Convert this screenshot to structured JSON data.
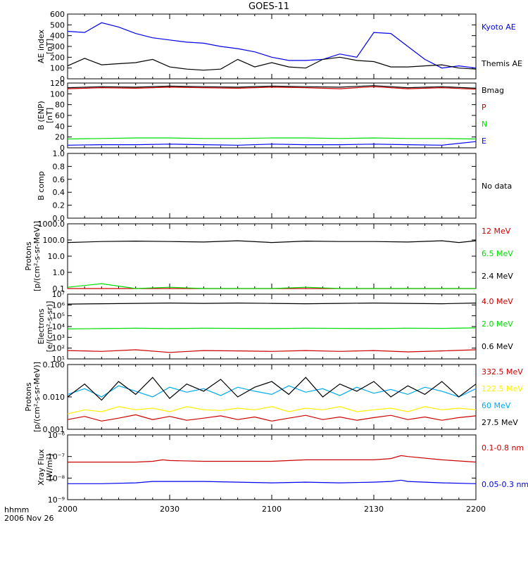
{
  "title": "GOES-11",
  "x_axis": {
    "labels": [
      "2000",
      "2030",
      "2100",
      "2130",
      "2200"
    ],
    "time_label": "hhmm",
    "date_label": "2006 Nov 26"
  },
  "colors": {
    "black": "#000000",
    "red": "#cc0000",
    "green": "#00dd00",
    "blue": "#0000ee",
    "cyan": "#00aaee",
    "yellow": "#ffee00"
  },
  "chart_data": [
    {
      "type": "line",
      "id": "ae",
      "ylabel": [
        "AE index",
        "[nT]"
      ],
      "ylim": [
        0,
        600
      ],
      "scale": "linear",
      "ytick_labels": [
        "0",
        "100",
        "200",
        "300",
        "400",
        "500",
        "600"
      ],
      "x_minutes": [
        0,
        5,
        10,
        15,
        20,
        25,
        30,
        35,
        40,
        45,
        50,
        55,
        60,
        65,
        70,
        75,
        80,
        85,
        90,
        95,
        100,
        105,
        110,
        115,
        120
      ],
      "series": [
        {
          "name": "Kyoto AE",
          "color": "blue",
          "values": [
            440,
            430,
            520,
            480,
            420,
            380,
            360,
            340,
            330,
            300,
            280,
            250,
            200,
            170,
            170,
            180,
            230,
            200,
            430,
            420,
            300,
            180,
            100,
            120,
            100
          ]
        },
        {
          "name": "Themis AE",
          "color": "black",
          "values": [
            120,
            190,
            130,
            140,
            150,
            180,
            110,
            90,
            80,
            90,
            180,
            110,
            150,
            110,
            100,
            180,
            200,
            170,
            160,
            110,
            110,
            120,
            130,
            100,
            90
          ]
        }
      ]
    },
    {
      "type": "line",
      "id": "bfield",
      "ylabel": [
        "B (ENP)",
        "[nT]"
      ],
      "ylim": [
        0,
        125
      ],
      "scale": "linear",
      "ytick_labels": [
        "0",
        "20",
        "40",
        "60",
        "80",
        "100",
        "120"
      ],
      "x_minutes": [
        0,
        10,
        20,
        30,
        40,
        50,
        60,
        70,
        80,
        90,
        100,
        110,
        120
      ],
      "series": [
        {
          "name": "Bmag",
          "color": "black",
          "values": [
            116,
            118,
            117,
            119,
            118,
            117,
            119,
            118,
            117,
            120,
            116,
            118,
            115
          ]
        },
        {
          "name": "P",
          "color": "red",
          "values": [
            114,
            116,
            115,
            117,
            116,
            115,
            117,
            116,
            114,
            118,
            114,
            116,
            113
          ]
        },
        {
          "name": "N",
          "color": "green",
          "values": [
            17,
            18,
            19,
            19,
            18,
            18,
            19,
            19,
            18,
            19,
            18,
            18,
            17
          ]
        },
        {
          "name": "E",
          "color": "blue",
          "values": [
            5,
            6,
            6,
            7,
            6,
            5,
            7,
            6,
            6,
            7,
            6,
            5,
            12
          ]
        }
      ]
    },
    {
      "type": "line",
      "id": "bcomp",
      "ylabel": [
        "B comp"
      ],
      "ylim": [
        0,
        1
      ],
      "scale": "linear",
      "ytick_labels": [
        "0.0",
        "0.2",
        "0.4",
        "0.6",
        "0.8",
        "1.0"
      ],
      "series": [],
      "note": "No data"
    },
    {
      "type": "line",
      "id": "protons_low",
      "ylabel": [
        "Protons",
        "[p/(cm²-s-sr-MeV)]"
      ],
      "ylim": [
        0.1,
        1000
      ],
      "scale": "log",
      "ytick_labels": [
        "0.1",
        "1.0",
        "10.0",
        "100.0",
        "1000.0"
      ],
      "x_minutes": [
        0,
        10,
        20,
        30,
        40,
        50,
        60,
        70,
        80,
        90,
        100,
        110,
        115,
        120
      ],
      "series": [
        {
          "name": "12 MeV",
          "color": "red",
          "values": [
            0.1,
            0.1,
            0.1,
            0.1,
            0.1,
            0.1,
            0.1,
            0.1,
            0.1,
            0.1,
            0.1,
            0.1,
            0.1,
            0.1
          ]
        },
        {
          "name": "6.5 MeV",
          "color": "green",
          "values": [
            0.12,
            0.2,
            0.1,
            0.12,
            0.1,
            0.1,
            0.1,
            0.12,
            0.1,
            0.1,
            0.1,
            0.1,
            0.1,
            0.1
          ]
        },
        {
          "name": "2.4 MeV",
          "color": "black",
          "values": [
            70,
            80,
            85,
            80,
            75,
            90,
            70,
            85,
            80,
            80,
            75,
            90,
            70,
            90
          ]
        }
      ]
    },
    {
      "type": "line",
      "id": "electrons",
      "ylabel": [
        "Electrons",
        "[e/(cm²-s-sr)]"
      ],
      "ylim": [
        10,
        10000000
      ],
      "scale": "log",
      "ytick_labels": [
        "10¹",
        "10²",
        "10³",
        "10⁴",
        "10⁵",
        "10⁶",
        "10⁷"
      ],
      "x_minutes": [
        0,
        10,
        20,
        30,
        40,
        50,
        60,
        70,
        80,
        90,
        100,
        110,
        120
      ],
      "series": [
        {
          "name": "4.0 MeV",
          "color": "red",
          "values": [
            60,
            50,
            70,
            40,
            60,
            55,
            50,
            60,
            50,
            60,
            45,
            55,
            70
          ]
        },
        {
          "name": "2.0 MeV",
          "color": "green",
          "values": [
            6000,
            6500,
            7000,
            6500,
            7000,
            6800,
            6500,
            7000,
            6800,
            6500,
            7000,
            6800,
            7500
          ]
        },
        {
          "name": "0.6 MeV",
          "color": "black",
          "values": [
            1200000,
            1300000,
            1400000,
            1500000,
            1400000,
            1500000,
            1400000,
            1300000,
            1400000,
            1500000,
            1400000,
            1300000,
            1500000
          ]
        }
      ]
    },
    {
      "type": "line",
      "id": "protons_high",
      "ylabel": [
        "Protons",
        "[p/(cm²-s-sr-MeV)]"
      ],
      "ylim": [
        0.001,
        0.1
      ],
      "scale": "log",
      "ytick_labels": [
        "0.001",
        "0.010",
        "0.100"
      ],
      "x_minutes": [
        0,
        5,
        10,
        15,
        20,
        25,
        30,
        35,
        40,
        45,
        50,
        55,
        60,
        65,
        70,
        75,
        80,
        85,
        90,
        95,
        100,
        105,
        110,
        115,
        120
      ],
      "series": [
        {
          "name": "332.5 MeV",
          "color": "red",
          "values": [
            0.002,
            0.0025,
            0.0018,
            0.0022,
            0.0028,
            0.002,
            0.0025,
            0.0019,
            0.0022,
            0.0026,
            0.002,
            0.0024,
            0.0018,
            0.0022,
            0.0027,
            0.002,
            0.0024,
            0.0019,
            0.0023,
            0.0027,
            0.002,
            0.0024,
            0.0019,
            0.0023,
            0.0026
          ]
        },
        {
          "name": "122.5 MeV",
          "color": "yellow",
          "values": [
            0.003,
            0.004,
            0.0035,
            0.005,
            0.004,
            0.0045,
            0.0035,
            0.005,
            0.004,
            0.0038,
            0.0045,
            0.004,
            0.005,
            0.0035,
            0.0045,
            0.004,
            0.005,
            0.0035,
            0.004,
            0.0045,
            0.0035,
            0.005,
            0.004,
            0.0045,
            0.004
          ]
        },
        {
          "name": "60 MeV",
          "color": "cyan",
          "values": [
            0.012,
            0.018,
            0.01,
            0.022,
            0.015,
            0.01,
            0.02,
            0.014,
            0.018,
            0.011,
            0.02,
            0.015,
            0.012,
            0.022,
            0.014,
            0.018,
            0.011,
            0.02,
            0.013,
            0.017,
            0.012,
            0.02,
            0.015,
            0.01,
            0.018
          ]
        },
        {
          "name": "27.5 MeV",
          "color": "black",
          "values": [
            0.01,
            0.025,
            0.008,
            0.03,
            0.012,
            0.04,
            0.009,
            0.025,
            0.015,
            0.035,
            0.01,
            0.02,
            0.03,
            0.012,
            0.04,
            0.01,
            0.025,
            0.015,
            0.03,
            0.01,
            0.022,
            0.012,
            0.03,
            0.01,
            0.025
          ]
        }
      ]
    },
    {
      "type": "line",
      "id": "xray",
      "ylabel": [
        "Xray Flux",
        "[W/m²]"
      ],
      "ylim": [
        1e-09,
        1e-06
      ],
      "scale": "log",
      "ytick_labels": [
        "10⁻⁹",
        "10⁻⁸",
        "10⁻⁷",
        "10⁻⁶"
      ],
      "x_minutes": [
        0,
        10,
        20,
        25,
        28,
        30,
        40,
        50,
        60,
        70,
        80,
        90,
        95,
        98,
        100,
        110,
        120
      ],
      "series": [
        {
          "name": "0.1-0.8 nm",
          "color": "red",
          "values": [
            5.5e-08,
            5.5e-08,
            5.5e-08,
            6e-08,
            7e-08,
            6.5e-08,
            6e-08,
            6e-08,
            6e-08,
            7e-08,
            7e-08,
            7e-08,
            8e-08,
            1.1e-07,
            1e-07,
            7e-08,
            5.5e-08
          ]
        },
        {
          "name": "0.05-0.3 nm",
          "color": "blue",
          "values": [
            5.5e-09,
            5.5e-09,
            6e-09,
            7e-09,
            7e-09,
            7e-09,
            7e-09,
            6.5e-09,
            6e-09,
            6.5e-09,
            6e-09,
            6.5e-09,
            7e-09,
            8e-09,
            7e-09,
            6e-09,
            5.5e-09
          ]
        }
      ]
    }
  ]
}
